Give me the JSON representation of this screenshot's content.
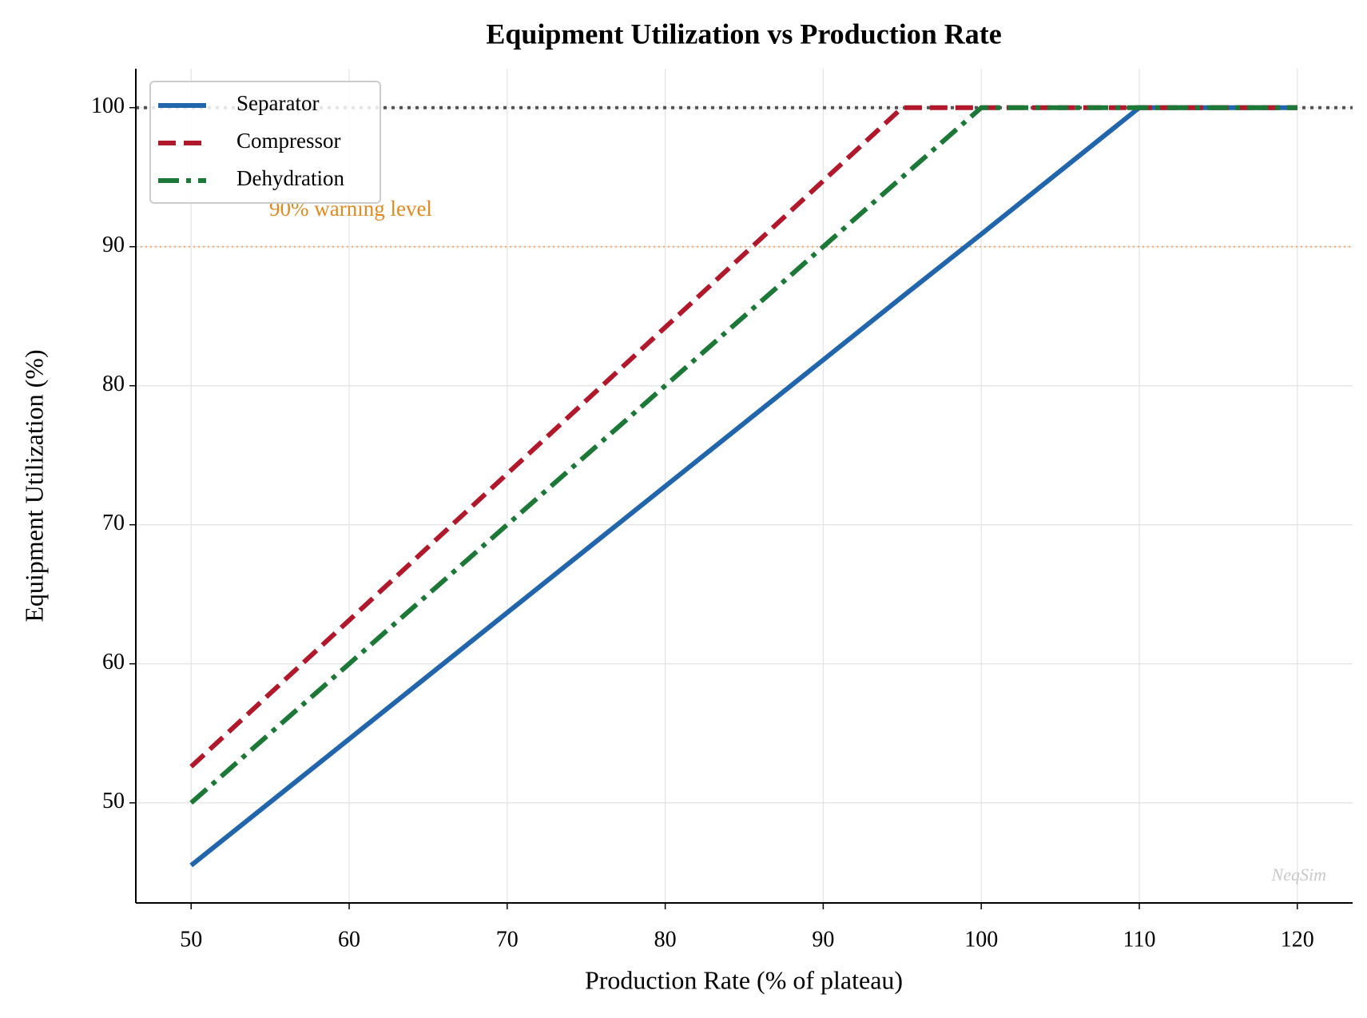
{
  "chart_data": {
    "type": "line",
    "title": "Equipment Utilization vs Production Rate",
    "x_label": "Production Rate (% of plateau)",
    "y_label": "Equipment Utilization (%)",
    "x": [
      50,
      95,
      100,
      110,
      120
    ],
    "series": [
      {
        "name": "Separator",
        "color": "#2166ac",
        "dash": "solid",
        "values": [
          45.5,
          86.4,
          90.9,
          100,
          100
        ]
      },
      {
        "name": "Compressor",
        "color": "#b2182b",
        "dash": "dashed",
        "values": [
          52.6,
          100,
          100,
          100,
          100
        ]
      },
      {
        "name": "Dehydration",
        "color": "#1b7837",
        "dash": "dashdot",
        "values": [
          50,
          95,
          100,
          100,
          100
        ]
      }
    ],
    "reference_lines": [
      {
        "value": 100,
        "color": "#555555"
      },
      {
        "value": 90,
        "color": "#e8a060",
        "label": "90% warning level",
        "label_color": "#e08a20"
      }
    ],
    "watermark": "NeqSim",
    "xlim": [
      46.5,
      123.5
    ],
    "ylim": [
      42.8,
      102.8
    ],
    "xticks": [
      50,
      60,
      70,
      80,
      90,
      100,
      110,
      120
    ],
    "yticks": [
      50,
      60,
      70,
      80,
      90,
      100
    ],
    "grid": true,
    "legend": "upper left"
  }
}
